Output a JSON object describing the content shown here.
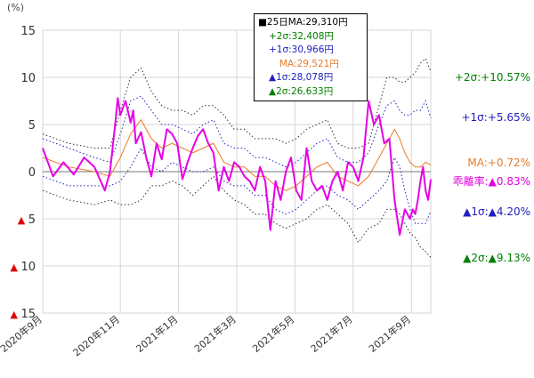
{
  "chart_data": {
    "type": "line",
    "unit_label": "(%)",
    "ylim": [
      -15,
      15
    ],
    "y_ticks": [
      {
        "value": 15,
        "label": "15",
        "neg": false
      },
      {
        "value": 10,
        "label": "10",
        "neg": false
      },
      {
        "value": 5,
        "label": "5",
        "neg": false
      },
      {
        "value": 0,
        "label": "0",
        "neg": false
      },
      {
        "value": -5,
        "label": "5",
        "neg": true
      },
      {
        "value": -10,
        "label": "10",
        "neg": true
      },
      {
        "value": -15,
        "label": "15",
        "neg": true
      }
    ],
    "x_range": [
      0,
      300
    ],
    "x_ticks": [
      {
        "label": "2020年9月",
        "x": 0
      },
      {
        "label": "2020年11月",
        "x": 60
      },
      {
        "label": "2021年1月",
        "x": 105
      },
      {
        "label": "2021年3月",
        "x": 150
      },
      {
        "label": "2021年5月",
        "x": 195
      },
      {
        "label": "2021年7月",
        "x": 240
      },
      {
        "label": "2021年9月",
        "x": 285
      }
    ],
    "grid": true,
    "legend": {
      "position": "top-center",
      "entries": [
        {
          "marker": "■",
          "marker_color": "#000000",
          "text": "25日MA:29,310円",
          "color": "#000000"
        },
        {
          "text": "+2σ:32,408円",
          "color": "#008000"
        },
        {
          "text": "+1σ:30,966円",
          "color": "#2020c0"
        },
        {
          "text": "MA:29,521円",
          "color": "#ea7a2a"
        },
        {
          "marker": "▲",
          "marker_color": "#2020c0",
          "text": "1σ:28,078円",
          "color": "#2020c0"
        },
        {
          "marker": "▲",
          "marker_color": "#008000",
          "text": "2σ:26,633円",
          "color": "#008000"
        }
      ]
    },
    "annotations": [
      {
        "text": "+2σ:+10.57%",
        "color": "#008000"
      },
      {
        "text": "+1σ:+5.65%",
        "color": "#2020c0"
      },
      {
        "text": "MA:+0.72%",
        "color": "#ea7a2a"
      },
      {
        "label": "乖離率:",
        "marker": "▲",
        "value": "0.83%",
        "color": "#e000e0",
        "marker_color": "#e000e0"
      },
      {
        "marker": "▲",
        "marker_color": "#2020c0",
        "text": "1σ:",
        "marker2": "▲",
        "value": "4.20%",
        "color": "#2020c0"
      },
      {
        "marker": "▲",
        "marker_color": "#008000",
        "text": "2σ:",
        "marker2": "▲",
        "value": "9.13%",
        "color": "#008000"
      }
    ],
    "colors": {
      "deviation": "#e600e6",
      "ma": "#ea7a2a",
      "sigma1": "#2020c0",
      "sigma2": "#2f2f2f",
      "grid": "#d6d6d6",
      "zero": "#777777",
      "neg_marker": "#e00000"
    },
    "series": [
      {
        "key": "deviation",
        "x": [
          0,
          8,
          16,
          24,
          32,
          40,
          48,
          52,
          56,
          58,
          60,
          64,
          68,
          70,
          72,
          76,
          80,
          84,
          88,
          92,
          96,
          100,
          104,
          108,
          112,
          116,
          120,
          124,
          128,
          132,
          136,
          140,
          144,
          148,
          152,
          156,
          160,
          164,
          168,
          172,
          176,
          180,
          184,
          188,
          192,
          196,
          200,
          204,
          208,
          212,
          216,
          220,
          224,
          228,
          232,
          236,
          240,
          244,
          248,
          252,
          256,
          260,
          264,
          268,
          272,
          276,
          280,
          284,
          286,
          288,
          290,
          292,
          294,
          296,
          298,
          300
        ],
        "values": [
          2.5,
          -0.5,
          1.0,
          -0.3,
          1.5,
          0.5,
          -2.0,
          0.0,
          5.0,
          7.8,
          6.0,
          7.5,
          5.2,
          6.5,
          3.0,
          4.2,
          1.5,
          -0.5,
          3.0,
          1.3,
          4.5,
          4.0,
          3.0,
          -0.8,
          1.0,
          2.5,
          3.8,
          4.5,
          3.0,
          2.0,
          -2.0,
          0.5,
          -1.0,
          1.0,
          0.5,
          -0.5,
          -1.0,
          -2.0,
          0.5,
          -1.0,
          -6.2,
          -1.0,
          -3.0,
          0.0,
          1.5,
          -2.0,
          -3.0,
          2.5,
          -1.0,
          -2.0,
          -1.5,
          -3.0,
          -1.0,
          0.0,
          -2.0,
          1.0,
          0.5,
          -1.0,
          1.5,
          7.5,
          5.0,
          6.0,
          3.0,
          3.5,
          -3.0,
          -6.7,
          -4.0,
          -5.0,
          -4.0,
          -4.5,
          -3.0,
          -1.0,
          0.5,
          -2.0,
          -3.0,
          -0.8
        ]
      },
      {
        "key": "ma",
        "x": [
          0,
          20,
          40,
          52,
          60,
          68,
          76,
          84,
          92,
          100,
          108,
          116,
          124,
          132,
          140,
          148,
          156,
          164,
          172,
          180,
          188,
          196,
          204,
          212,
          220,
          228,
          236,
          244,
          252,
          260,
          266,
          272,
          276,
          280,
          284,
          288,
          292,
          296,
          300
        ],
        "values": [
          1.5,
          0.5,
          0.0,
          -0.5,
          1.5,
          4.0,
          5.5,
          3.5,
          2.5,
          3.0,
          2.5,
          2.0,
          2.5,
          3.0,
          1.0,
          0.5,
          0.5,
          -0.5,
          -0.5,
          -1.5,
          -2.0,
          -1.5,
          -0.5,
          0.5,
          1.0,
          -0.5,
          -1.0,
          -1.5,
          -0.5,
          1.5,
          3.0,
          4.5,
          3.5,
          2.0,
          1.0,
          0.5,
          0.5,
          1.0,
          0.7
        ]
      },
      {
        "key": "sigma1_upper",
        "x": [
          0,
          20,
          40,
          52,
          60,
          68,
          76,
          84,
          92,
          100,
          108,
          116,
          124,
          132,
          140,
          148,
          156,
          164,
          172,
          180,
          188,
          196,
          204,
          212,
          220,
          228,
          236,
          244,
          252,
          260,
          266,
          272,
          276,
          280,
          284,
          288,
          292,
          296,
          300
        ],
        "values": [
          3.5,
          2.5,
          1.5,
          1.0,
          4.0,
          7.5,
          8.0,
          6.5,
          5.0,
          5.0,
          4.5,
          4.0,
          5.0,
          5.5,
          3.0,
          2.5,
          2.5,
          1.5,
          1.5,
          1.0,
          0.5,
          1.0,
          2.0,
          3.0,
          3.5,
          1.5,
          1.0,
          1.0,
          2.0,
          5.0,
          7.0,
          7.5,
          6.5,
          6.0,
          6.0,
          6.5,
          6.5,
          7.5,
          5.7
        ]
      },
      {
        "key": "sigma1_lower",
        "x": [
          0,
          20,
          40,
          52,
          60,
          68,
          76,
          84,
          92,
          100,
          108,
          116,
          124,
          132,
          140,
          148,
          156,
          164,
          172,
          180,
          188,
          196,
          204,
          212,
          220,
          228,
          236,
          244,
          252,
          260,
          266,
          272,
          276,
          280,
          284,
          288,
          292,
          296,
          300
        ],
        "values": [
          -0.5,
          -1.5,
          -1.5,
          -1.5,
          -1.0,
          0.5,
          2.5,
          0.5,
          0.0,
          1.0,
          0.5,
          0.0,
          0.0,
          0.5,
          -1.0,
          -1.5,
          -1.5,
          -2.5,
          -2.5,
          -4.0,
          -4.5,
          -4.0,
          -3.0,
          -2.0,
          -1.5,
          -2.5,
          -3.0,
          -4.0,
          -3.0,
          -2.0,
          -1.0,
          1.5,
          0.5,
          -2.0,
          -4.0,
          -5.5,
          -5.5,
          -5.5,
          -4.2
        ]
      },
      {
        "key": "sigma2_upper",
        "x": [
          0,
          20,
          40,
          52,
          60,
          68,
          76,
          84,
          92,
          100,
          108,
          116,
          124,
          132,
          140,
          148,
          156,
          164,
          172,
          180,
          188,
          196,
          204,
          212,
          220,
          228,
          236,
          244,
          252,
          260,
          266,
          272,
          276,
          280,
          284,
          288,
          292,
          296,
          300
        ],
        "values": [
          4.0,
          3.0,
          2.5,
          2.5,
          6.5,
          10.0,
          11.0,
          8.5,
          7.0,
          6.5,
          6.5,
          6.0,
          7.0,
          7.0,
          6.0,
          4.5,
          4.5,
          3.5,
          3.5,
          3.5,
          3.0,
          3.5,
          4.5,
          5.0,
          5.5,
          3.0,
          2.5,
          2.5,
          3.0,
          7.0,
          10.0,
          10.0,
          9.5,
          9.5,
          10.0,
          10.5,
          11.5,
          12.0,
          10.6
        ]
      },
      {
        "key": "sigma2_lower",
        "x": [
          0,
          20,
          40,
          52,
          60,
          68,
          76,
          84,
          92,
          100,
          108,
          116,
          124,
          132,
          140,
          148,
          156,
          164,
          172,
          180,
          188,
          196,
          204,
          212,
          220,
          228,
          236,
          244,
          252,
          260,
          266,
          272,
          276,
          280,
          284,
          288,
          292,
          296,
          300
        ],
        "values": [
          -2.0,
          -3.0,
          -3.5,
          -3.0,
          -3.5,
          -3.5,
          -3.0,
          -1.5,
          -1.5,
          -1.0,
          -1.5,
          -2.5,
          -1.5,
          -0.5,
          -2.0,
          -3.0,
          -3.5,
          -4.5,
          -4.5,
          -5.5,
          -6.0,
          -5.5,
          -5.0,
          -4.0,
          -3.5,
          -4.5,
          -5.5,
          -7.5,
          -6.0,
          -5.5,
          -4.0,
          -4.0,
          -4.5,
          -5.5,
          -6.5,
          -7.0,
          -8.0,
          -8.5,
          -9.1
        ]
      }
    ]
  }
}
